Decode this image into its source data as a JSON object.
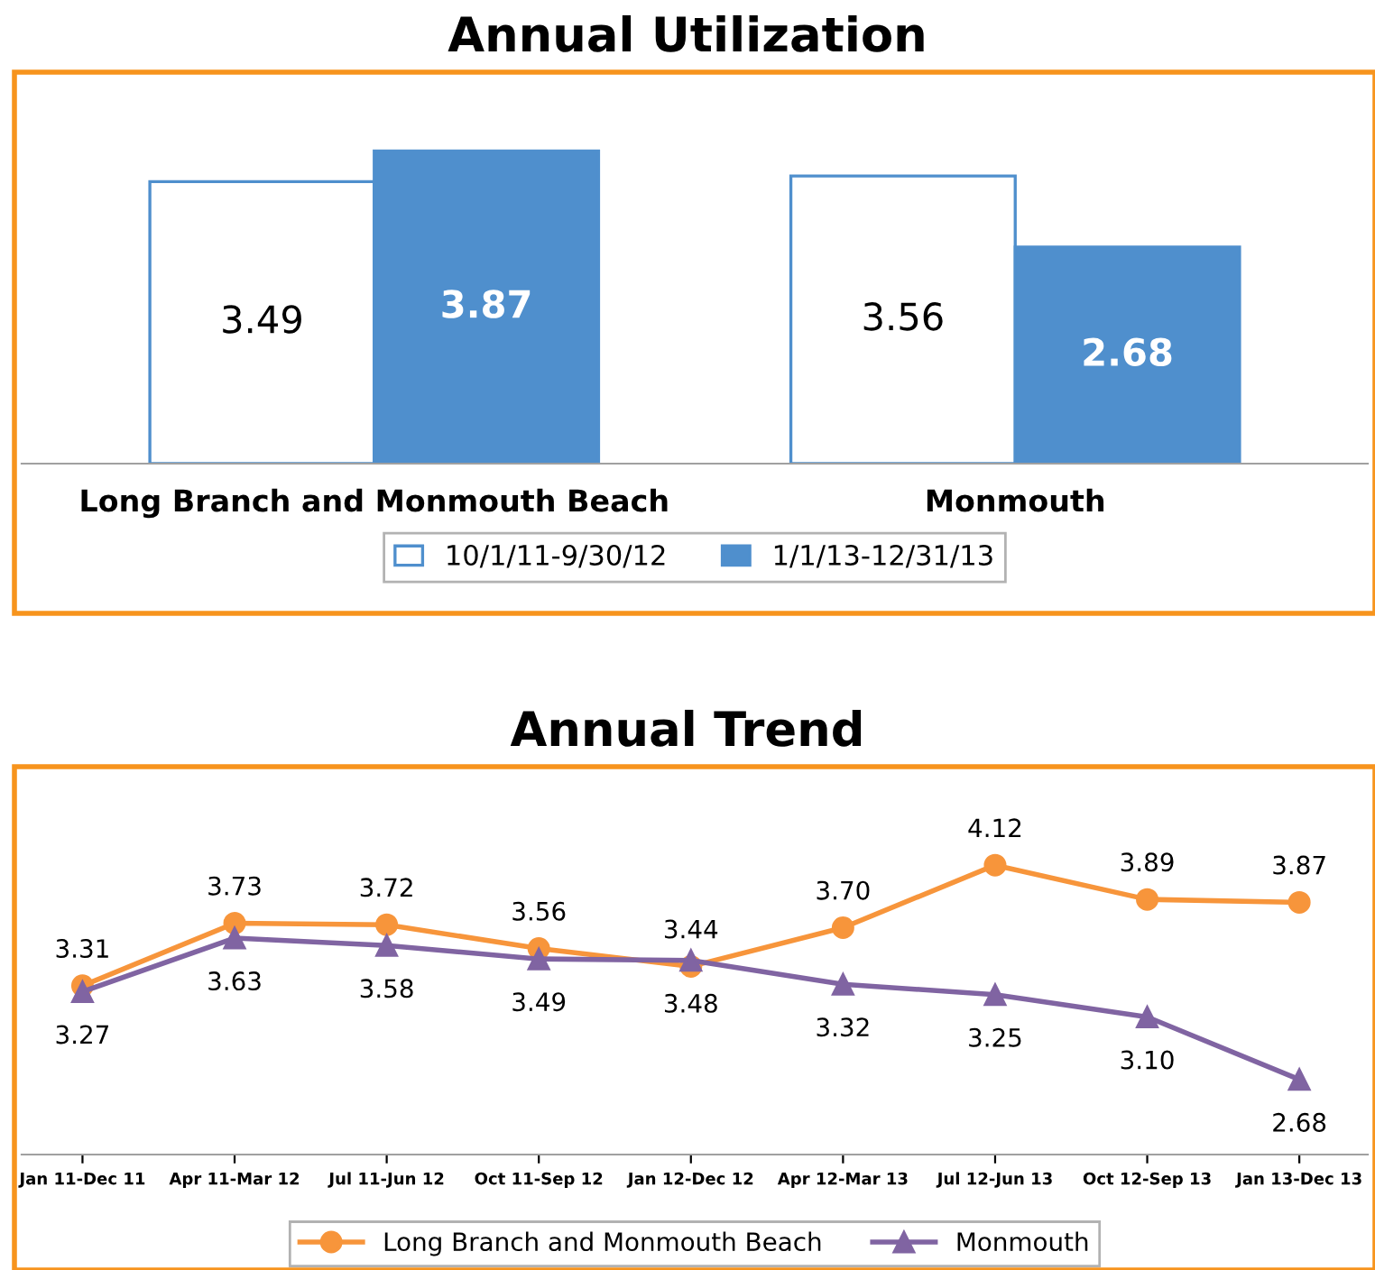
{
  "chart_data": [
    {
      "type": "bar",
      "title": "Annual Utilization",
      "categories": [
        "Long Branch and Monmouth Beach",
        "Monmouth"
      ],
      "series": [
        {
          "name": "10/1/11-9/30/12",
          "color": "#ffffff",
          "values": [
            3.49,
            3.56
          ]
        },
        {
          "name": "1/1/13-12/31/13",
          "color": "#4f8fcd",
          "values": [
            3.87,
            2.68
          ]
        }
      ],
      "data_labels": true,
      "legend": "bottom",
      "grid": false
    },
    {
      "type": "line",
      "title": "Annual Trend",
      "categories": [
        "Jan 11-Dec 11",
        "Apr 11-Mar 12",
        "Jul 11-Jun 12",
        "Oct 11-Sep 12",
        "Jan 12-Dec 12",
        "Apr 12-Mar 13",
        "Jul 12-Jun 13",
        "Oct 12-Sep 13",
        "Jan 13-Dec 13"
      ],
      "series": [
        {
          "name": "Long Branch and Monmouth Beach",
          "color": "#f7953b",
          "marker": "circle",
          "values": [
            3.31,
            3.73,
            3.72,
            3.56,
            3.44,
            3.7,
            4.12,
            3.89,
            3.87
          ],
          "value_labels": [
            "3.31",
            "3.73",
            "3.72",
            "3.56",
            "3.44",
            "3.70",
            "4.12",
            "3.89",
            "3.87"
          ]
        },
        {
          "name": "Monmouth",
          "color": "#8064a2",
          "marker": "triangle",
          "values": [
            3.27,
            3.63,
            3.58,
            3.49,
            3.48,
            3.32,
            3.25,
            3.1,
            2.68
          ],
          "value_labels": [
            "3.27",
            "3.63",
            "3.58",
            "3.49",
            "3.48",
            "3.32",
            "3.25",
            "3.10",
            "2.68"
          ]
        }
      ],
      "legend": "bottom",
      "grid": false
    }
  ]
}
